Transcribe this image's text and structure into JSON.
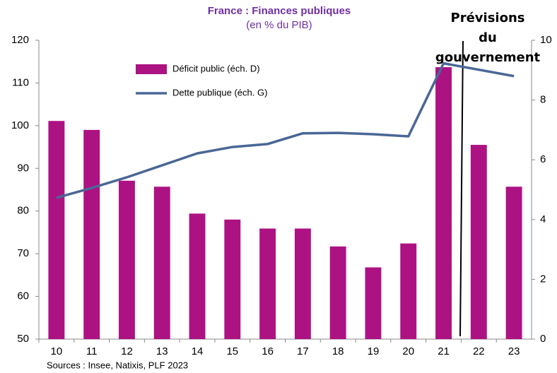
{
  "chart_data": {
    "type": "bar_line",
    "title": "France : Finances publiques",
    "subtitle": "(en % du PIB)",
    "categories": [
      "10",
      "11",
      "12",
      "13",
      "14",
      "15",
      "16",
      "17",
      "18",
      "19",
      "20",
      "21",
      "22",
      "23"
    ],
    "series": [
      {
        "name": "Déficit public (éch. D)",
        "type": "bar",
        "axis": "y2",
        "color": "#ad1283",
        "values": [
          7.3,
          7.0,
          5.3,
          5.1,
          4.2,
          4.0,
          3.7,
          3.7,
          3.1,
          2.4,
          3.2,
          9.1,
          6.5,
          5.1
        ]
      },
      {
        "name": "Dette publique (éch. G)",
        "type": "line",
        "axis": "y",
        "color": "#4a6796",
        "values": [
          83.1,
          85.4,
          87.9,
          90.7,
          93.5,
          95.0,
          95.7,
          98.2,
          98.3,
          98.0,
          97.5,
          114.6,
          113.1,
          111.6
        ]
      }
    ],
    "ylim": [
      50,
      120
    ],
    "yticks": [
      50,
      60,
      70,
      80,
      90,
      100,
      110,
      120
    ],
    "y2lim": [
      0,
      10
    ],
    "y2ticks": [
      0,
      2,
      4,
      6,
      8,
      10
    ],
    "annotation_lines": [
      "Prévisions",
      "du",
      "gouvernement"
    ],
    "source": "Sources : Insee, Natixis, PLF 2023"
  }
}
